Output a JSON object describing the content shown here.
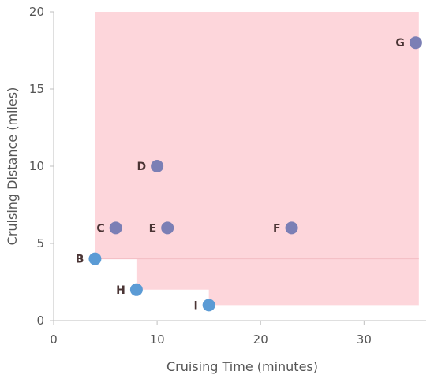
{
  "chart_data": {
    "type": "scatter",
    "title": "",
    "xlabel": "Cruising Time (minutes)",
    "ylabel": "Cruising Distance (miles)",
    "xlim": [
      0,
      36
    ],
    "ylim": [
      0,
      20
    ],
    "xticks": [
      0,
      10,
      20,
      30
    ],
    "yticks": [
      0,
      5,
      10,
      15,
      20
    ],
    "grid": false,
    "points": [
      {
        "label": "B",
        "x": 4,
        "y": 4,
        "dominated": false
      },
      {
        "label": "C",
        "x": 6,
        "y": 6,
        "dominated": true
      },
      {
        "label": "D",
        "x": 10,
        "y": 10,
        "dominated": true
      },
      {
        "label": "E",
        "x": 11,
        "y": 6,
        "dominated": true
      },
      {
        "label": "F",
        "x": 23,
        "y": 6,
        "dominated": true
      },
      {
        "label": "G",
        "x": 35,
        "y": 18,
        "dominated": true
      },
      {
        "label": "H",
        "x": 8,
        "y": 2,
        "dominated": false
      },
      {
        "label": "I",
        "x": 15,
        "y": 1,
        "dominated": false
      }
    ],
    "dominated_region_steps": [
      {
        "x": 4,
        "y": 4
      },
      {
        "x": 8,
        "y": 2
      },
      {
        "x": 15,
        "y": 1
      }
    ],
    "colors": {
      "region_fill": "#fdd6db",
      "region_edge": "#f2bcc3",
      "point_frontier": "#5b9bd5",
      "point_dominated": "#7b7fb5"
    }
  }
}
